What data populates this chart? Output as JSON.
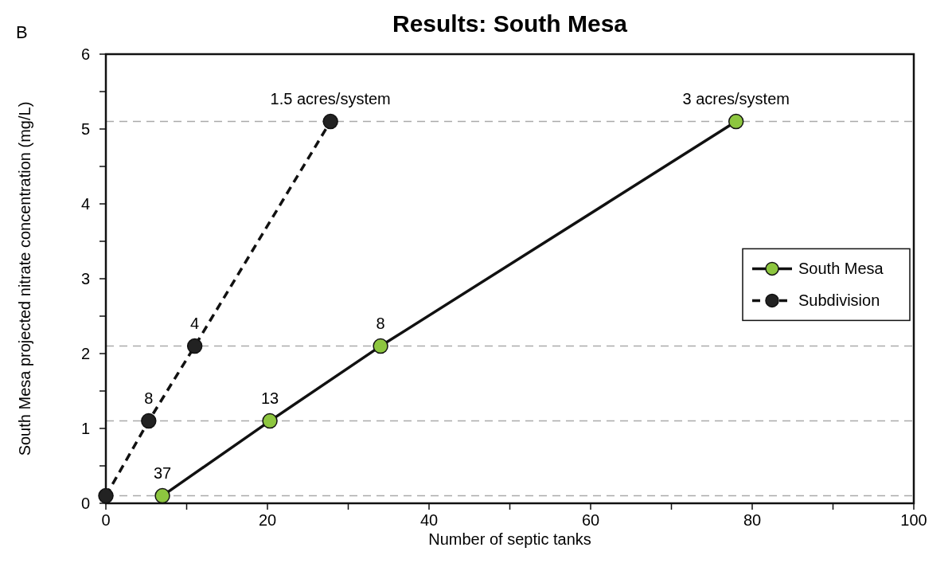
{
  "chart_data": {
    "type": "line",
    "title": "Results: South Mesa",
    "xlabel": "Number of septic tanks",
    "ylabel": "South Mesa projected nitrate concentration (mg/L)",
    "xlim": [
      0,
      100
    ],
    "ylim": [
      0,
      6
    ],
    "xticks": [
      0,
      {
        "value": 10,
        "label": null
      },
      20,
      {
        "value": 30,
        "label": null
      },
      40,
      {
        "value": 50,
        "label": null
      },
      60,
      {
        "value": 70,
        "label": null
      },
      80,
      {
        "value": 90,
        "label": null
      },
      100
    ],
    "yticks": [
      0,
      {
        "value": 0.5,
        "label": null
      },
      1,
      {
        "value": 1.5,
        "label": null
      },
      2,
      {
        "value": 2.5,
        "label": null
      },
      3,
      {
        "value": 3.5,
        "label": null
      },
      4,
      {
        "value": 4.5,
        "label": null
      },
      5,
      {
        "value": 5.5,
        "label": null
      },
      6
    ],
    "series": [
      {
        "name": "South Mesa",
        "color": "#8dc63f",
        "line_style": "solid",
        "x": [
          7,
          20.3,
          34,
          78
        ],
        "values": [
          0.1,
          1.1,
          2.1,
          5.1
        ]
      },
      {
        "name": "Subdivision",
        "color": "#222222",
        "line_style": "dashed",
        "x": [
          0,
          5.3,
          11,
          27.8
        ],
        "values": [
          0.1,
          1.1,
          2.1,
          5.1
        ]
      }
    ],
    "marker": "circle",
    "grid": false,
    "legend": "right",
    "ref_lines": [
      {
        "axis": "y",
        "value": 0.1,
        "color": "#aaaaaa",
        "line_style": "dashed"
      },
      {
        "axis": "y",
        "value": 1.1,
        "color": "#aaaaaa",
        "line_style": "dashed"
      },
      {
        "axis": "y",
        "value": 2.1,
        "color": "#aaaaaa",
        "line_style": "dashed"
      },
      {
        "axis": "y",
        "value": 5.1,
        "color": "#aaaaaa",
        "line_style": "dashed"
      }
    ],
    "annotations": [
      "B",
      {
        "text": "37",
        "x": 7,
        "y": 0.1
      },
      {
        "text": "13",
        "x": 20.3,
        "y": 1.1
      },
      {
        "text": "8",
        "x": 34,
        "y": 2.1
      },
      {
        "text": "3 acres/system",
        "x": 78,
        "y": 5.1
      },
      {
        "text": "8",
        "x": 5.3,
        "y": 1.1
      },
      {
        "text": "4",
        "x": 11,
        "y": 2.1
      },
      {
        "text": "1.5 acres/system",
        "x": 27.8,
        "y": 5.1
      }
    ]
  }
}
